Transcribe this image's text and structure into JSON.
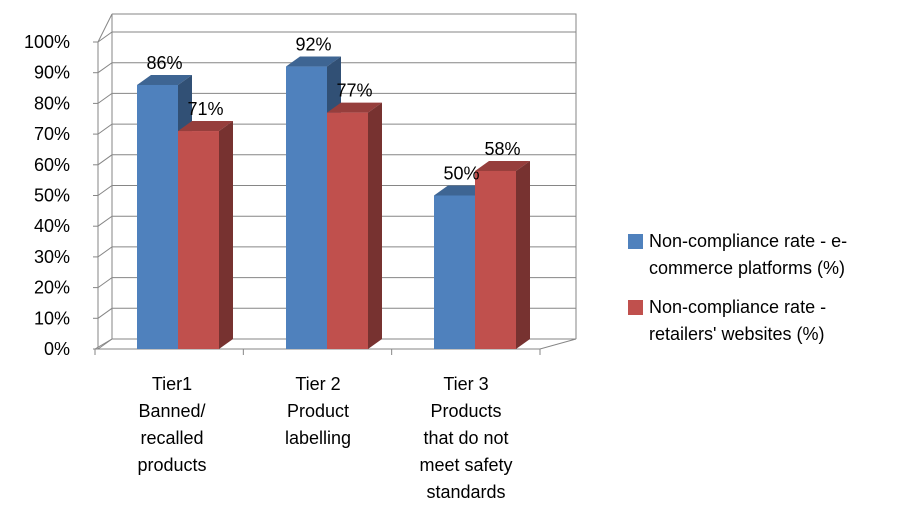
{
  "chart_data": {
    "type": "bar",
    "categories": [
      [
        "Tier1",
        "Banned/",
        "recalled",
        "products"
      ],
      [
        "Tier 2",
        "Product",
        "labelling"
      ],
      [
        "Tier 3",
        "Products",
        "that do not",
        "meet safety",
        "standards"
      ]
    ],
    "series": [
      {
        "name": "Non-compliance rate - e-commerce platforms (%)",
        "values": [
          86,
          92,
          50
        ],
        "color": "#4F81BD"
      },
      {
        "name": "Non-compliance rate - retailers' websites (%)",
        "values": [
          71,
          77,
          58
        ],
        "color": "#C0504D"
      }
    ],
    "data_labels": [
      [
        "86%",
        "92%",
        "50%"
      ],
      [
        "71%",
        "77%",
        "58%"
      ]
    ],
    "ylim": [
      0,
      100
    ],
    "yticks": [
      "0%",
      "10%",
      "20%",
      "30%",
      "40%",
      "50%",
      "60%",
      "70%",
      "80%",
      "90%",
      "100%"
    ],
    "grid": true,
    "style": "3d-clustered-column",
    "legend_position": "right"
  },
  "legend": {
    "items": [
      {
        "lines": [
          "Non-compliance rate - e-",
          "commerce platforms (%)"
        ],
        "color": "#4F81BD"
      },
      {
        "lines": [
          "Non-compliance rate -",
          "retailers' websites (%)"
        ],
        "color": "#C0504D"
      }
    ]
  }
}
